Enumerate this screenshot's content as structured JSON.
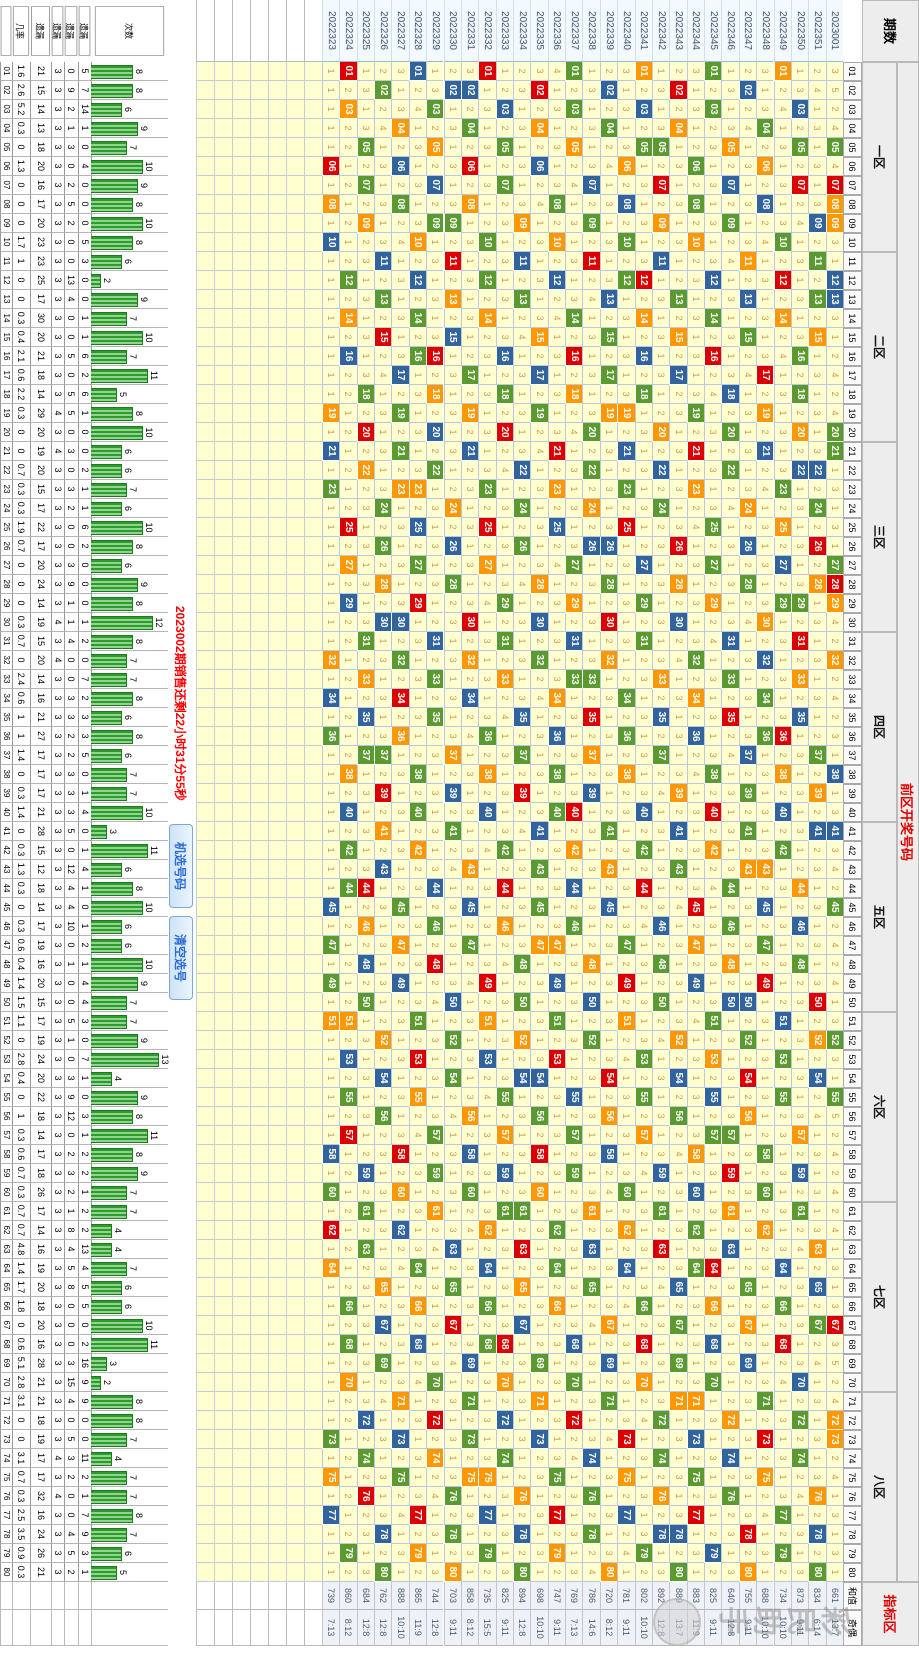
{
  "header": {
    "periods_label": "期数",
    "front_label": "前区开奖号码",
    "indicator_label": "指标区",
    "sum_label": "和值",
    "ratio_label": "奇偶",
    "zones": [
      "一区",
      "二区",
      "三区",
      "四区",
      "五区",
      "六区",
      "七区",
      "八区"
    ]
  },
  "countdown": "2023002期销售还剩22小时31分55秒",
  "buttons": {
    "random": "机选号码",
    "clear": "清空选号"
  },
  "watermark": "彩民助手",
  "colors": {
    "red": "#dd0000",
    "green": "#5b9a2e",
    "blue": "#31639c",
    "orange": "#ff9800",
    "cell_bg": "#ffffcf",
    "miss_text": "#c89a55",
    "accent_red": "#e00000"
  },
  "number_count": 80,
  "stats_labels": [
    "次数",
    "遗漏",
    "遗漏",
    "遗漏",
    "遗漏",
    "几率"
  ],
  "periods": [
    "2023001",
    "2022351",
    "2022350",
    "2022349",
    "2022348",
    "2022347",
    "2022346",
    "2022345",
    "2022344",
    "2022343",
    "2022342",
    "2022341",
    "2022340",
    "2022339",
    "2022338",
    "2022337",
    "2022336",
    "2022335",
    "2022334",
    "2022333",
    "2022332",
    "2022331",
    "2022330",
    "2022329",
    "2022328",
    "2022327",
    "2022326",
    "2022325",
    "2022324",
    "2022323"
  ],
  "draws": [
    "05G 07R 08O 09O 12B 13B 20G 21G 27G 28R 29O 32O 38B 41B 45G 52G 55G 67R 72O 73O",
    "15O 28O 41B 54B 67G 80G 13G 26R 39O 52O 65B 78B 11G 24G 37G 50R 63O 76O 09B 22B",
    "22B 35B 48G 61G 74G 07R 20O 33O 46B 59B 72G 05G 18G 31R 44O 57O 70B 03B 16G 29G",
    "29G 42G 55G 68R 01O 14O 27B 40B 53G 66G 79G 12R 25O 38O 51B 64B 77G 10G 23G 36R",
    "36G 49R 62O 75O 08B 21B 34G 47G 60G 73R 06O 19O 32B 45B 58G 71G 04G 17R 30O 43O",
    "43O 56O 69B 02B 15G 28G 41G 54R 67O 80O 13B 26B 39G 52G 65G 78R 11O 24O 37B 50B",
    "50B 63B 76G 09G 22G 35R 48O 61O 74B 07B 20G 33G 46G 59R 72O 05O 18B 31B 44G 57G",
    "57G 70G 03G 16R 29O 42O 55B 68B 01G 14G 27G 40R 53O 66O 79B 12B 25G 38G 51G 64R",
    "64G 77R 10O 23O 36B 49B 62G 75G 08G 21R 34O 47O 60B 73B 06G 19G 32G 45R 58O 71O",
    "71O 04O 17B 30B 43G 56G 69G 02R 15O 28O 41B 54B 67G 80G 13G 26R 39O 52O 65B 78B",
    "78B 11B 24G 37G 50G 63R 76O 09O 22B 35B 48G 61G 74G 07R 20O 33O 46B 59B 72G 05G",
    "05G 18G 31G 44R 57O 70O 03B 16B 29G 42G 55G 68R 01O 14O 27B 40B 53G 66G 79G 12R",
    "12G 25R 38O 51O 64B 77B 10G 23G 36G 49R 62O 75O 08B 21B 34G 47G 60G 73R 06O 19O",
    "19O 32O 45B 58B 71G 04G 17G 30R 43O 56O 69B 02B 15G 28G 41G 54R 67O 80O 13B 26B",
    "26B 39B 52G 65G 78G 11R 24O 37O 50B 63B 76G 09G 22G 35R 48O 61O 74B 07B 20G 33G",
    "33G 46G 59G 72R 05O 18O 31B 44B 57G 70G 03G 16R 29O 42O 55B 68B 01G 14G 27G 40R",
    "40G 53R 66O 79O 12B 25B 38G 51G 64G 77R 10O 23O 36B 49B 62G 75G 08G 21R 34O 47O",
    "47O 60O 73B 06B 19G 32G 45G 58R 71O 04O 17B 30B 43G 56G 69G 02R 15O 28O 41B 54B",
    "54B 67B 80G 13G 26G 39R 52O 65O 78B 11B 24G 37G 50G 63R 76O 09O 22B 35B 48G 61G",
    "61G 74G 07G 20R 33O 46O 59B 72B 05G 18G 31G 44R 57O 70O 03B 16B 29G 42G 55G 68R",
    "68G 01R 14O 27O 40B 53B 66G 79G 12G 25R 38O 51O 64B 77B 10G 23G 36G 49R 62O 75O",
    "75O 08O 21B 34B 47G 60G 73G 06R 19O 32O 45B 58B 71G 04G 17G 30R 43O 56O 69B 02B",
    "02B 15B 28G 41G 54G 67R 80O 13O 26B 39B 52G 65G 78G 11R 24O 37O 50B 63B 76G 09G",
    "09G 22G 35G 48R 61O 74O 07B 20B 33G 46G 59G 72R 05O 18O 31B 44B 57G 70G 03G 16R",
    "16G 29R 42O 55O 68B 01B 14G 27G 40G 53R 66O 79O 12B 25B 38G 51G 64G 77R 10O 23O",
    "23O 36O 49B 62B 75G 08G 21G 34R 47O 60O 73B 06B 19G 32G 45G 58R 71O 04O 17B 30B",
    "30B 43B 56G 69G 02G 15R 28O 41O 54B 67B 80G 13G 26G 39R 52O 65O 78B 11B 24G 37G",
    "37G 50G 63G 76R 09O 22O 35B 48B 61G 74G 07G 20R 33O 46O 59B 72B 05G 18G 31G 44R",
    "44G 57R 70O 03O 16B 29B 42G 55G 68G 01R 14O 27O 40B 53B 66G 79G 12G 25R 38O 51O",
    "51O 64O 77B 10B 23G 36G 49G 62R 75O 08O 21B 34B 47G 60G 73G 06R 19O 32O 45B 58B"
  ],
  "stats": [
    [
      1.6,
      21,
      3,
      0,
      5,
      8
    ],
    [
      2.6,
      15,
      3,
      9,
      7,
      8
    ],
    [
      5.2,
      14,
      3,
      2,
      14,
      6
    ],
    [
      0.3,
      13,
      3,
      1,
      1,
      9
    ],
    [
      0,
      18,
      3,
      3,
      0,
      7
    ],
    [
      1.3,
      20,
      3,
      0,
      4,
      10
    ],
    [
      0,
      16,
      3,
      2,
      0,
      9
    ],
    [
      0,
      17,
      3,
      5,
      0,
      8
    ],
    [
      0,
      20,
      3,
      2,
      0,
      10
    ],
    [
      1.7,
      23,
      3,
      0,
      5,
      8
    ],
    [
      1,
      23,
      3,
      0,
      3,
      6
    ],
    [
      0,
      25,
      3,
      13,
      0,
      2
    ],
    [
      0,
      17,
      3,
      4,
      0,
      9
    ],
    [
      0.3,
      30,
      3,
      0,
      1,
      7
    ],
    [
      0.4,
      20,
      3,
      0,
      1,
      10
    ],
    [
      2.1,
      21,
      3,
      5,
      6,
      7
    ],
    [
      0.6,
      18,
      3,
      0,
      2,
      11
    ],
    [
      2.2,
      14,
      3,
      5,
      6,
      5
    ],
    [
      0.3,
      29,
      4,
      5,
      1,
      8
    ],
    [
      0,
      20,
      3,
      0,
      0,
      10
    ],
    [
      0,
      19,
      4,
      3,
      0,
      6
    ],
    [
      0.7,
      20,
      3,
      0,
      2,
      6
    ],
    [
      0.3,
      15,
      3,
      3,
      1,
      7
    ],
    [
      0.3,
      17,
      3,
      2,
      1,
      6
    ],
    [
      1.9,
      22,
      3,
      0,
      6,
      10
    ],
    [
      0.7,
      17,
      3,
      0,
      2,
      8
    ],
    [
      0,
      20,
      3,
      3,
      0,
      6
    ],
    [
      0,
      24,
      3,
      9,
      0,
      9
    ],
    [
      0,
      14,
      3,
      1,
      0,
      8
    ],
    [
      0.3,
      19,
      4,
      1,
      1,
      12
    ],
    [
      0.7,
      15,
      3,
      4,
      2,
      8
    ],
    [
      0,
      20,
      4,
      0,
      0,
      7
    ],
    [
      2.4,
      14,
      3,
      0,
      7,
      7
    ],
    [
      0.6,
      16,
      3,
      3,
      2,
      8
    ],
    [
      1,
      21,
      3,
      3,
      3,
      6
    ],
    [
      1,
      27,
      3,
      2,
      3,
      8
    ],
    [
      1.4,
      17,
      3,
      2,
      5,
      6
    ],
    [
      0,
      17,
      3,
      3,
      0,
      7
    ],
    [
      0.3,
      17,
      3,
      3,
      1,
      7
    ],
    [
      1.4,
      21,
      3,
      3,
      4,
      10
    ],
    [
      0,
      28,
      3,
      5,
      0,
      3
    ],
    [
      0.3,
      15,
      3,
      0,
      1,
      11
    ],
    [
      1.3,
      12,
      3,
      12,
      4,
      6
    ],
    [
      0.3,
      18,
      3,
      4,
      1,
      8
    ],
    [
      0,
      14,
      3,
      4,
      0,
      10
    ],
    [
      0.3,
      17,
      3,
      10,
      1,
      6
    ],
    [
      0.6,
      19,
      3,
      0,
      2,
      6
    ],
    [
      0.4,
      16,
      3,
      1,
      1,
      10
    ],
    [
      1.4,
      20,
      3,
      0,
      4,
      9
    ],
    [
      1.5,
      15,
      3,
      0,
      4,
      7
    ],
    [
      1.1,
      17,
      3,
      5,
      3,
      7
    ],
    [
      0,
      19,
      3,
      1,
      0,
      9
    ],
    [
      2.8,
      24,
      3,
      0,
      7,
      13
    ],
    [
      0.4,
      20,
      3,
      3,
      1,
      4
    ],
    [
      0,
      22,
      3,
      9,
      0,
      9
    ],
    [
      1,
      18,
      3,
      12,
      3,
      8
    ],
    [
      0.3,
      14,
      3,
      0,
      1,
      11
    ],
    [
      0.6,
      17,
      3,
      2,
      2,
      8
    ],
    [
      0.7,
      18,
      3,
      3,
      2,
      9
    ],
    [
      0.3,
      26,
      3,
      2,
      1,
      7
    ],
    [
      0.7,
      17,
      3,
      1,
      2,
      7
    ],
    [
      0.7,
      14,
      3,
      8,
      2,
      4
    ],
    [
      4.8,
      16,
      3,
      4,
      13,
      4
    ],
    [
      1.4,
      19,
      3,
      5,
      4,
      7
    ],
    [
      1.7,
      20,
      3,
      8,
      5,
      6
    ],
    [
      1.8,
      18,
      3,
      0,
      5,
      6
    ],
    [
      0,
      20,
      3,
      0,
      0,
      10
    ],
    [
      0.6,
      16,
      3,
      0,
      2,
      11
    ],
    [
      5.1,
      28,
      3,
      3,
      16,
      3
    ],
    [
      2.8,
      21,
      3,
      15,
      9,
      2
    ],
    [
      3.1,
      21,
      3,
      4,
      9,
      8
    ],
    [
      0,
      18,
      3,
      0,
      0,
      8
    ],
    [
      0,
      19,
      3,
      5,
      0,
      7
    ],
    [
      3.1,
      17,
      4,
      3,
      11,
      4
    ],
    [
      0.7,
      17,
      3,
      2,
      2,
      7
    ],
    [
      0.3,
      32,
      4,
      0,
      1,
      7
    ],
    [
      2.5,
      16,
      3,
      0,
      7,
      8
    ],
    [
      3.5,
      24,
      3,
      4,
      9,
      7
    ],
    [
      0.9,
      26,
      3,
      5,
      3,
      6
    ],
    [
      0.3,
      21,
      3,
      2,
      1,
      5
    ]
  ],
  "sums": [
    661,
    834,
    873,
    734,
    688,
    755,
    640,
    825,
    883,
    889,
    892,
    802,
    781,
    720,
    786,
    769,
    747,
    698,
    894,
    825,
    735,
    858,
    703,
    744,
    865,
    888,
    762,
    684,
    860,
    739
  ],
  "ratios": [
    "13:7",
    "6:14",
    "9:11",
    "10:10",
    "10:10",
    "9:11",
    "12:8",
    "9:11",
    "11:9",
    "13:7",
    "12:8",
    "10:10",
    "9:11",
    "8:12",
    "14:6",
    "7:13",
    "9:11",
    "10:10",
    "12:8",
    "9:11",
    "15:5",
    "8:12",
    "9:11",
    "12:8",
    "11:9",
    "10:10",
    "12:8",
    "12:8",
    "8:12",
    "7:13"
  ]
}
